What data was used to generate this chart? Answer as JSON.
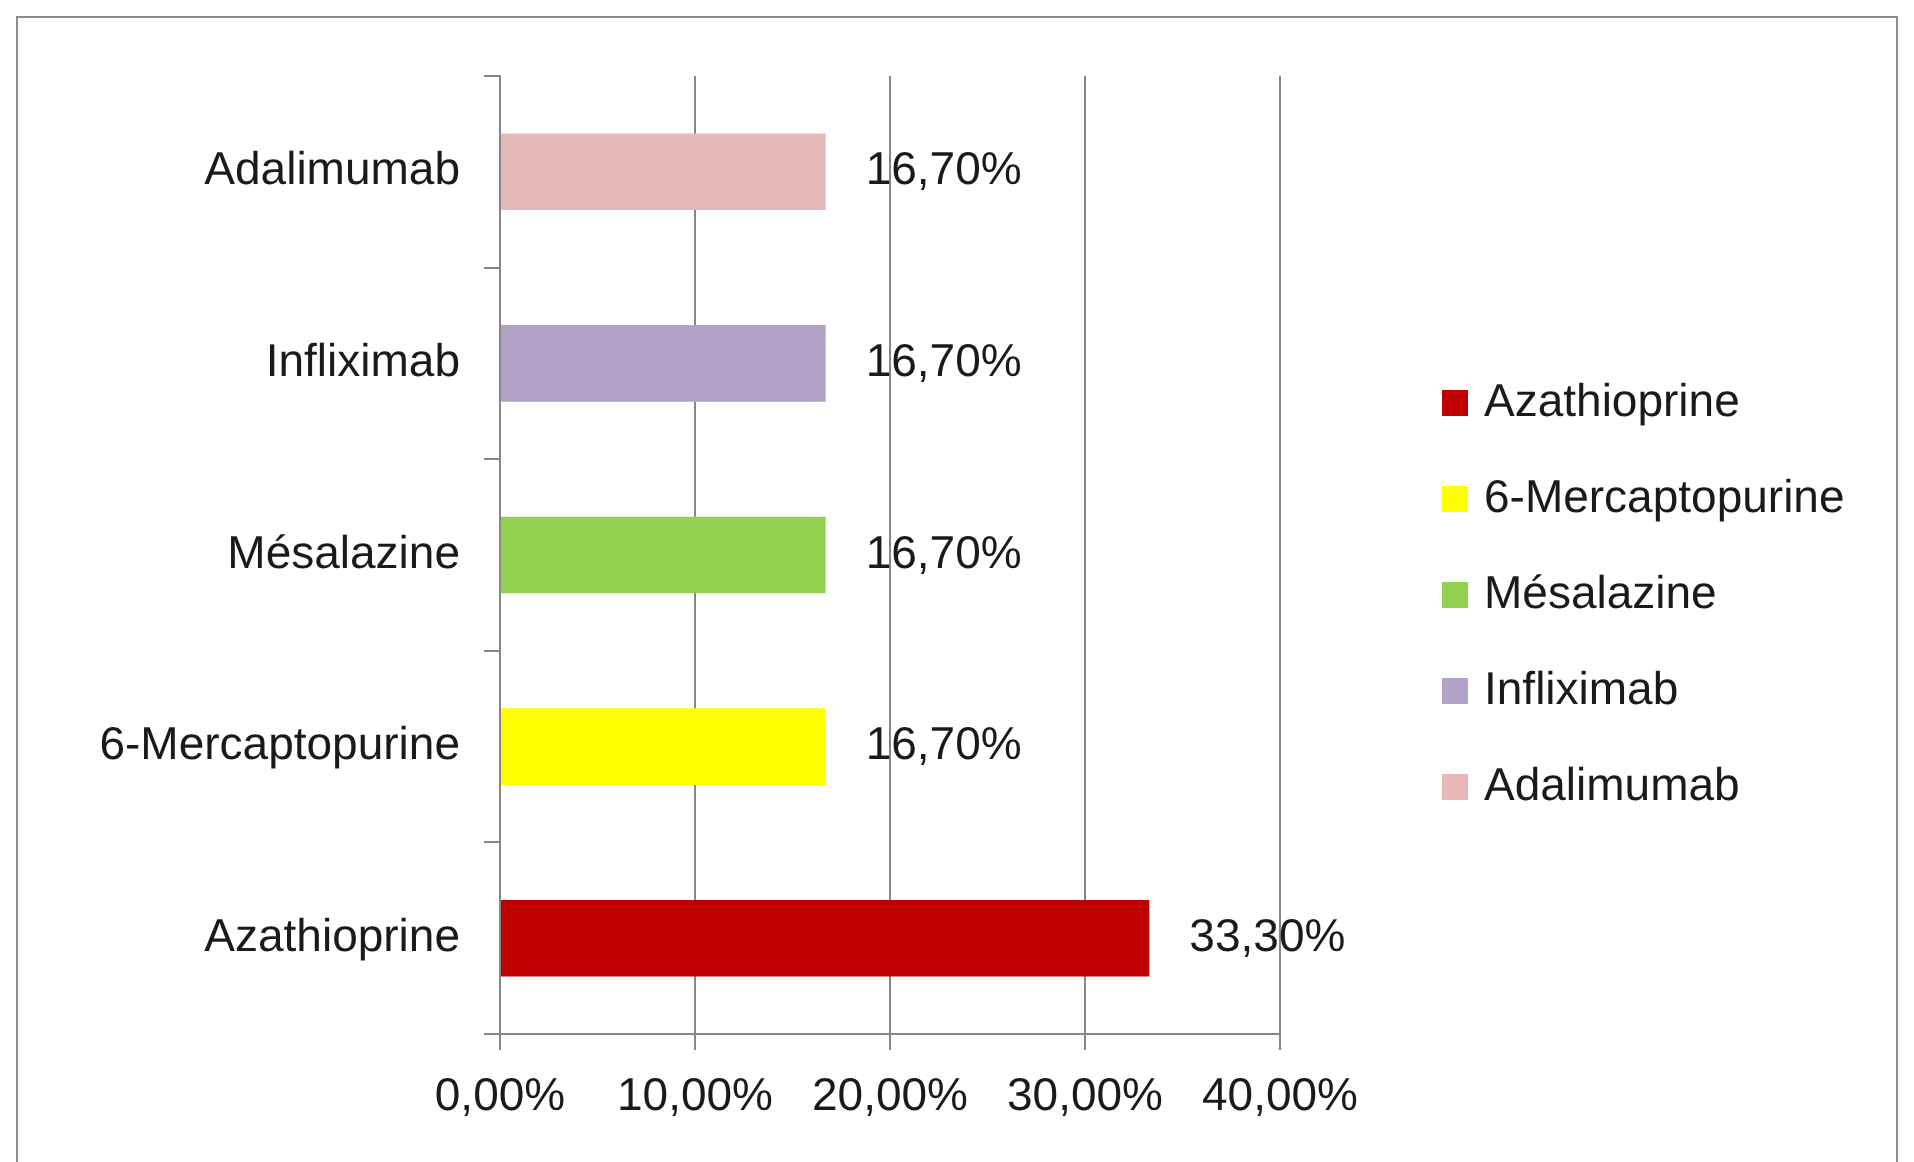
{
  "chart_data": {
    "type": "bar",
    "orientation": "horizontal",
    "categories": [
      "Adalimumab",
      "Infliximab",
      "Mésalazine",
      "6-Mercaptopurine",
      "Azathioprine"
    ],
    "series": [
      {
        "name": "Azathioprine",
        "color": "#c00000",
        "values": [
          null,
          null,
          null,
          null,
          33.3
        ],
        "value_labels": [
          null,
          null,
          null,
          null,
          "33,30%"
        ]
      },
      {
        "name": "6-Mercaptopurine",
        "color": "#ffff00",
        "values": [
          null,
          null,
          null,
          16.7,
          null
        ],
        "value_labels": [
          null,
          null,
          null,
          "16,70%",
          null
        ]
      },
      {
        "name": "Mésalazine",
        "color": "#92d050",
        "values": [
          null,
          null,
          16.7,
          null,
          null
        ],
        "value_labels": [
          null,
          null,
          "16,70%",
          null,
          null
        ]
      },
      {
        "name": "Infliximab",
        "color": "#b3a2c7",
        "values": [
          null,
          16.7,
          null,
          null,
          null
        ],
        "value_labels": [
          null,
          "16,70%",
          null,
          null,
          null
        ]
      },
      {
        "name": "Adalimumab",
        "color": "#e6b9b8",
        "values": [
          16.7,
          null,
          null,
          null,
          null
        ],
        "value_labels": [
          "16,70%",
          null,
          null,
          null,
          null
        ]
      }
    ],
    "xlim": [
      0,
      40
    ],
    "xticks": [
      {
        "value": 0,
        "label": "0,00%"
      },
      {
        "value": 10,
        "label": "10,00%"
      },
      {
        "value": 20,
        "label": "20,00%"
      },
      {
        "value": 30,
        "label": "30,00%"
      },
      {
        "value": 40,
        "label": "40,00%"
      }
    ],
    "grid": "x",
    "legend": "right"
  }
}
